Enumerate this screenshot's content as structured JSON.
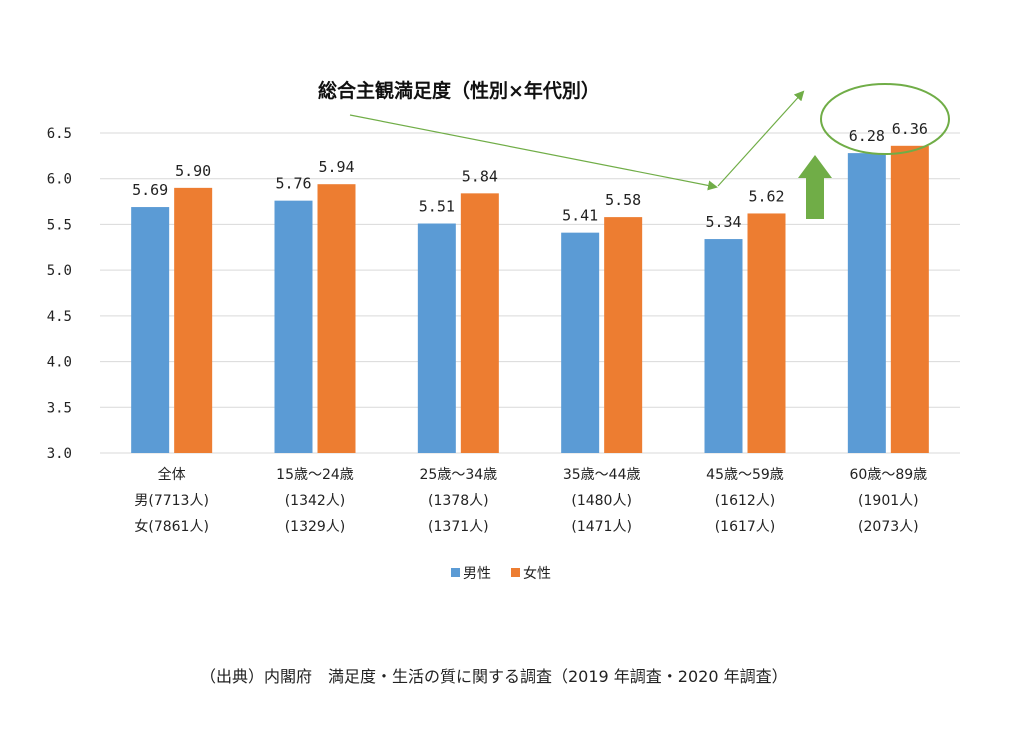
{
  "chart_data": {
    "type": "bar",
    "title": "総合主観満足度（性別×年代別）",
    "categories": [
      [
        "全体",
        "男(7713人)",
        "女(7861人)"
      ],
      [
        "15歳～24歳",
        "(1342人)",
        "(1329人)"
      ],
      [
        "25歳～34歳",
        "(1378人)",
        "(1371人)"
      ],
      [
        "35歳～44歳",
        "(1480人)",
        "(1471人)"
      ],
      [
        "45歳～59歳",
        "(1612人)",
        "(1617人)"
      ],
      [
        "60歳～89歳",
        "(1901人)",
        "(2073人)"
      ]
    ],
    "series": [
      {
        "name": "男性",
        "color": "#5B9BD5",
        "values": [
          5.69,
          5.76,
          5.51,
          5.41,
          5.34,
          6.28
        ],
        "labels": [
          "5.69",
          "5.76",
          "5.51",
          "5.41",
          "5.34",
          "6.28"
        ]
      },
      {
        "name": "女性",
        "color": "#ED7D31",
        "values": [
          5.9,
          5.94,
          5.84,
          5.58,
          5.62,
          6.36
        ],
        "labels": [
          "5.90",
          "5.94",
          "5.84",
          "5.58",
          "5.62",
          "6.36"
        ]
      }
    ],
    "ylim": [
      3.0,
      6.5
    ],
    "yticks": [
      "3.0",
      "3.5",
      "4.0",
      "4.5",
      "5.0",
      "5.5",
      "6.0",
      "6.5"
    ],
    "grid": true,
    "legend": "bottom",
    "annotations": {
      "arrow_color": "#70AD47",
      "highlight_ellipse_color": "#70AD47",
      "up_arrow_color": "#70AD47"
    }
  },
  "source": "（出典）内閣府　満足度・生活の質に関する調査（2019 年調査・2020 年調査）"
}
